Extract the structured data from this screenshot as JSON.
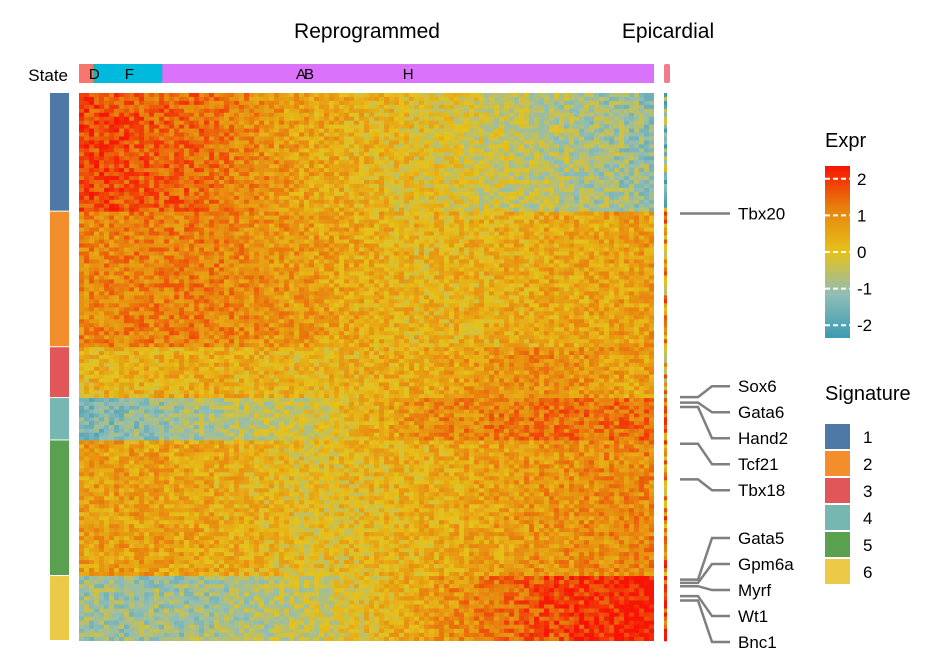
{
  "chart_data": {
    "type": "heatmap",
    "column_groups": [
      "Reprogrammed",
      "Epicardial"
    ],
    "state_label": "State",
    "state_segments": [
      {
        "label": "A",
        "fraction": 0.772,
        "color": "#F8766D"
      },
      {
        "label": "B",
        "fraction": 0.028,
        "color": "#D39200"
      },
      {
        "label": "D",
        "fraction": 0.025,
        "color": "#00B93A"
      },
      {
        "label": "",
        "fraction": 0.03,
        "color": "#00C1A7"
      },
      {
        "label": "F",
        "fraction": 0.145,
        "color": "#00BADE"
      },
      {
        "label": "H",
        "fraction": 1.0,
        "color": "#DB72FB"
      }
    ],
    "epicardial_state_color": "#F07A8E",
    "signatures": [
      {
        "id": "1",
        "color": "#4E79A7",
        "rows": 0.21,
        "profile": [
          1.6,
          1.2,
          0.5,
          0.0,
          -0.5,
          -0.9
        ]
      },
      {
        "id": "2",
        "color": "#F28E2B",
        "rows": 0.24,
        "profile": [
          0.9,
          1.0,
          0.6,
          0.2,
          0.4,
          0.6
        ]
      },
      {
        "id": "3",
        "color": "#E15759",
        "rows": 0.09,
        "profile": [
          0.2,
          0.4,
          0.2,
          0.4,
          0.8,
          0.5
        ]
      },
      {
        "id": "4",
        "color": "#76B7B2",
        "rows": 0.075,
        "profile": [
          -1.2,
          -0.7,
          -0.2,
          0.8,
          1.1,
          1.2
        ]
      },
      {
        "id": "5",
        "color": "#59A14F",
        "rows": 0.24,
        "profile": [
          0.6,
          0.5,
          0.0,
          0.3,
          0.7,
          0.9
        ]
      },
      {
        "id": "6",
        "color": "#EDC948",
        "rows": 0.115,
        "profile": [
          -0.8,
          -0.8,
          -0.4,
          0.5,
          1.4,
          2.0
        ]
      }
    ],
    "genes": [
      {
        "name": "Tbx20",
        "row_fraction": 0.22
      },
      {
        "name": "Sox6",
        "row_fraction": 0.555
      },
      {
        "name": "Gata6",
        "row_fraction": 0.565
      },
      {
        "name": "Hand2",
        "row_fraction": 0.573
      },
      {
        "name": "Tcf21",
        "row_fraction": 0.64
      },
      {
        "name": "Tbx18",
        "row_fraction": 0.705
      },
      {
        "name": "Gata5",
        "row_fraction": 0.888
      },
      {
        "name": "Gpm6a",
        "row_fraction": 0.894
      },
      {
        "name": "Myrf",
        "row_fraction": 0.9
      },
      {
        "name": "Wt1",
        "row_fraction": 0.918
      },
      {
        "name": "Bnc1",
        "row_fraction": 0.926
      }
    ],
    "legend_expr": {
      "title": "Expr",
      "ticks": [
        2,
        1,
        0,
        -1,
        -2
      ],
      "tick_labels": [
        "2",
        "1",
        "0",
        "-1",
        "-2"
      ],
      "colors": [
        "#F71404",
        "#E8830E",
        "#E6C21A",
        "#8FBDB8",
        "#3B9AB2"
      ]
    },
    "legend_signature": {
      "title": "Signature"
    }
  }
}
